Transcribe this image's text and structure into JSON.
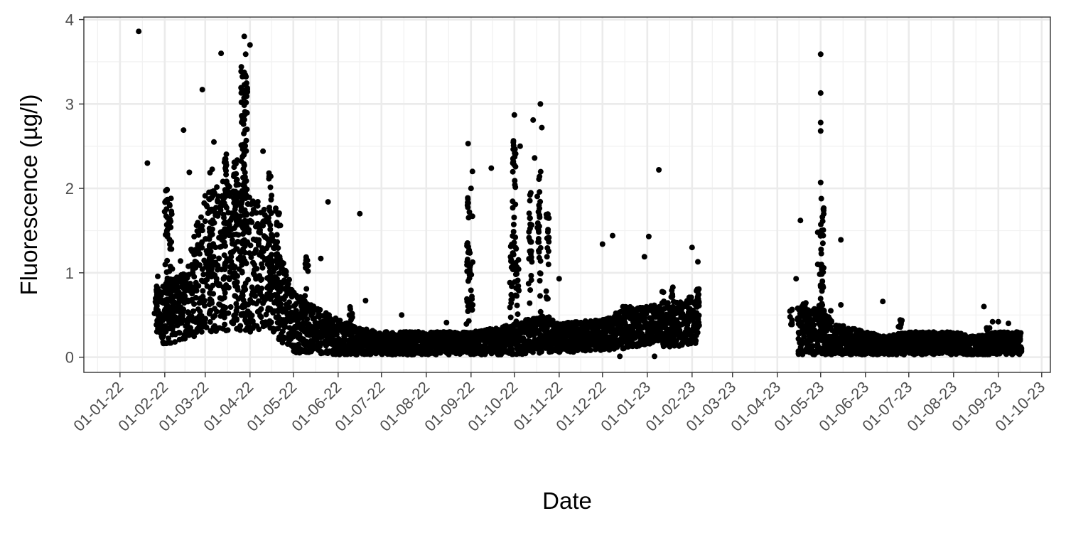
{
  "chart_data": {
    "type": "scatter",
    "title": "",
    "xlabel": "Date",
    "ylabel": "Fluorescence (µg/l)",
    "xlim": [
      "2021-12-07",
      "2023-10-07"
    ],
    "ylim": [
      -0.18,
      4.03
    ],
    "x_ticks": [
      "2022-01-01",
      "2022-02-01",
      "2022-03-01",
      "2022-04-01",
      "2022-05-01",
      "2022-06-01",
      "2022-07-01",
      "2022-08-01",
      "2022-09-01",
      "2022-10-01",
      "2022-11-01",
      "2022-12-01",
      "2023-01-01",
      "2023-02-01",
      "2023-03-01",
      "2023-04-01",
      "2023-05-01",
      "2023-06-01",
      "2023-07-01",
      "2023-08-01",
      "2023-09-01",
      "2023-10-01"
    ],
    "x_tick_labels": [
      "01-01-22",
      "01-02-22",
      "01-03-22",
      "01-04-22",
      "01-05-22",
      "01-06-22",
      "01-07-22",
      "01-08-22",
      "01-09-22",
      "01-10-22",
      "01-11-22",
      "01-12-22",
      "01-01-23",
      "01-02-23",
      "01-03-23",
      "01-04-23",
      "01-05-23",
      "01-06-23",
      "01-07-23",
      "01-08-23",
      "01-09-23",
      "01-10-23"
    ],
    "y_ticks": [
      0,
      1,
      2,
      3,
      4
    ],
    "y_tick_labels": [
      "0",
      "1",
      "2",
      "3",
      "4"
    ],
    "grid": true,
    "point_color": "#000000",
    "band_profile": {
      "comment_free": true,
      "dates": [
        "2022-01-26",
        "2022-02-01",
        "2022-02-15",
        "2022-03-01",
        "2022-03-15",
        "2022-04-01",
        "2022-04-15",
        "2022-05-01",
        "2022-05-15",
        "2022-06-01",
        "2022-06-15",
        "2022-07-01",
        "2022-08-01",
        "2022-09-01",
        "2022-09-20",
        "2022-10-01",
        "2022-10-20",
        "2022-11-01",
        "2022-12-01",
        "2022-12-15",
        "2023-01-01",
        "2023-01-15",
        "2023-02-06",
        "2023-02-07",
        "2023-04-15",
        "2023-04-20",
        "2023-05-01",
        "2023-05-10",
        "2023-06-01",
        "2023-06-15",
        "2023-07-01",
        "2023-08-01",
        "2023-08-15",
        "2023-09-01",
        "2023-09-17"
      ],
      "low": [
        0.2,
        0.15,
        0.2,
        0.3,
        0.3,
        0.3,
        0.3,
        0.05,
        0.05,
        0.03,
        0.03,
        0.03,
        0.03,
        0.03,
        0.03,
        0.03,
        0.05,
        0.05,
        0.08,
        0.1,
        0.15,
        0.12,
        0.15,
        null,
        0.03,
        0.03,
        0.03,
        0.03,
        0.03,
        0.03,
        0.03,
        0.03,
        0.03,
        0.03,
        0.03
      ],
      "high": [
        0.8,
        0.9,
        1.0,
        2.0,
        2.1,
        2.1,
        1.6,
        0.8,
        0.6,
        0.45,
        0.35,
        0.3,
        0.3,
        0.3,
        0.35,
        0.4,
        0.5,
        0.4,
        0.45,
        0.6,
        0.6,
        0.65,
        0.75,
        null,
        0.6,
        0.6,
        0.6,
        0.4,
        0.3,
        0.25,
        0.3,
        0.3,
        0.25,
        0.3,
        0.3
      ]
    },
    "peaks": [
      {
        "x": "2022-01-26",
        "y": 1.0
      },
      {
        "x": "2022-02-02",
        "y": 2.0
      },
      {
        "x": "2022-02-05",
        "y": 1.9
      },
      {
        "x": "2022-02-12",
        "y": 1.2
      },
      {
        "x": "2022-03-05",
        "y": 2.3
      },
      {
        "x": "2022-03-15",
        "y": 2.5
      },
      {
        "x": "2022-03-22",
        "y": 2.4
      },
      {
        "x": "2022-03-27",
        "y": 3.5
      },
      {
        "x": "2022-03-29",
        "y": 3.6
      },
      {
        "x": "2022-04-15",
        "y": 2.2
      },
      {
        "x": "2022-04-20",
        "y": 1.8
      },
      {
        "x": "2022-05-10",
        "y": 1.2
      },
      {
        "x": "2022-06-10",
        "y": 0.6
      },
      {
        "x": "2022-08-30",
        "y": 1.9
      },
      {
        "x": "2022-09-01",
        "y": 1.3
      },
      {
        "x": "2022-09-29",
        "y": 1.5
      },
      {
        "x": "2022-10-01",
        "y": 2.6
      },
      {
        "x": "2022-10-03",
        "y": 1.2
      },
      {
        "x": "2022-10-12",
        "y": 2.0
      },
      {
        "x": "2022-10-18",
        "y": 2.2
      },
      {
        "x": "2022-10-24",
        "y": 1.7
      },
      {
        "x": "2023-01-12",
        "y": 0.8
      },
      {
        "x": "2023-01-18",
        "y": 0.85
      },
      {
        "x": "2023-02-05",
        "y": 0.9
      },
      {
        "x": "2023-04-10",
        "y": 0.6
      },
      {
        "x": "2023-04-20",
        "y": 0.7
      },
      {
        "x": "2023-05-01",
        "y": 1.1
      },
      {
        "x": "2023-05-02",
        "y": 1.9
      },
      {
        "x": "2023-06-25",
        "y": 0.45
      },
      {
        "x": "2023-08-25",
        "y": 0.35
      }
    ],
    "outliers": [
      {
        "x": "2022-01-14",
        "y": 3.86
      },
      {
        "x": "2022-02-27",
        "y": 3.17
      },
      {
        "x": "2022-02-14",
        "y": 2.69
      },
      {
        "x": "2022-01-20",
        "y": 2.3
      },
      {
        "x": "2022-02-18",
        "y": 2.19
      },
      {
        "x": "2022-03-12",
        "y": 3.6
      },
      {
        "x": "2022-03-28",
        "y": 3.8
      },
      {
        "x": "2022-04-01",
        "y": 3.7
      },
      {
        "x": "2022-03-07",
        "y": 2.55
      },
      {
        "x": "2022-04-10",
        "y": 2.44
      },
      {
        "x": "2022-04-22",
        "y": 1.56
      },
      {
        "x": "2022-05-20",
        "y": 1.17
      },
      {
        "x": "2022-05-25",
        "y": 1.84
      },
      {
        "x": "2022-06-16",
        "y": 1.7
      },
      {
        "x": "2022-06-20",
        "y": 0.67
      },
      {
        "x": "2022-07-15",
        "y": 0.5
      },
      {
        "x": "2022-08-15",
        "y": 0.41
      },
      {
        "x": "2022-08-30",
        "y": 2.53
      },
      {
        "x": "2022-09-02",
        "y": 2.2
      },
      {
        "x": "2022-09-01",
        "y": 2.0
      },
      {
        "x": "2022-09-02",
        "y": 1.67
      },
      {
        "x": "2022-09-15",
        "y": 2.24
      },
      {
        "x": "2022-10-01",
        "y": 2.87
      },
      {
        "x": "2022-10-05",
        "y": 2.5
      },
      {
        "x": "2022-10-14",
        "y": 2.81
      },
      {
        "x": "2022-10-19",
        "y": 3.0
      },
      {
        "x": "2022-10-20",
        "y": 2.72
      },
      {
        "x": "2022-10-15",
        "y": 2.36
      },
      {
        "x": "2022-11-01",
        "y": 0.93
      },
      {
        "x": "2022-12-01",
        "y": 1.34
      },
      {
        "x": "2022-12-08",
        "y": 1.44
      },
      {
        "x": "2023-01-02",
        "y": 1.43
      },
      {
        "x": "2023-01-09",
        "y": 2.22
      },
      {
        "x": "2022-12-30",
        "y": 1.19
      },
      {
        "x": "2023-02-01",
        "y": 1.3
      },
      {
        "x": "2023-02-05",
        "y": 1.13
      },
      {
        "x": "2022-12-13",
        "y": 0.01
      },
      {
        "x": "2023-01-06",
        "y": 0.01
      },
      {
        "x": "2023-04-17",
        "y": 1.62
      },
      {
        "x": "2023-04-14",
        "y": 0.93
      },
      {
        "x": "2023-04-29",
        "y": 1.48
      },
      {
        "x": "2023-04-29",
        "y": 1.1
      },
      {
        "x": "2023-05-01",
        "y": 3.59
      },
      {
        "x": "2023-05-01",
        "y": 3.13
      },
      {
        "x": "2023-05-01",
        "y": 2.78
      },
      {
        "x": "2023-05-01",
        "y": 2.68
      },
      {
        "x": "2023-05-01",
        "y": 2.07
      },
      {
        "x": "2023-05-15",
        "y": 1.39
      },
      {
        "x": "2023-05-15",
        "y": 0.62
      },
      {
        "x": "2023-05-08",
        "y": 0.55
      },
      {
        "x": "2023-06-13",
        "y": 0.66
      },
      {
        "x": "2023-08-22",
        "y": 0.6
      },
      {
        "x": "2023-09-01",
        "y": 0.42
      },
      {
        "x": "2023-08-28",
        "y": 0.42
      },
      {
        "x": "2023-09-08",
        "y": 0.4
      }
    ]
  }
}
